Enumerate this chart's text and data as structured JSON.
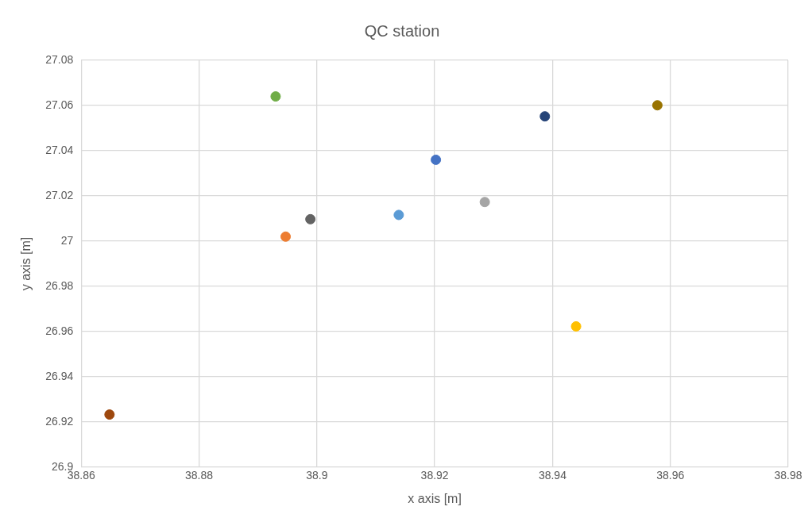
{
  "chart_data": {
    "type": "scatter",
    "title": "QC station",
    "xlabel": "x axis [m]",
    "ylabel": "y axis [m]",
    "x": [
      38.8648,
      38.8947,
      38.8989,
      38.893,
      38.9139,
      38.9202,
      38.9285,
      38.9387,
      38.944,
      38.9578
    ],
    "values": [
      26.9233,
      27.002,
      27.0097,
      27.064,
      27.0116,
      27.036,
      27.0173,
      27.0552,
      26.9623,
      27.0601
    ],
    "colors": [
      "#9e480e",
      "#ed7d31",
      "#636363",
      "#70ad47",
      "#5b9bd5",
      "#4472c4",
      "#a5a5a5",
      "#264478",
      "#ffc000",
      "#997300"
    ],
    "xlim": [
      38.86,
      38.98
    ],
    "xticks": [
      38.86,
      38.88,
      38.9,
      38.92,
      38.94,
      38.96,
      38.98
    ],
    "ylim": [
      26.9,
      27.08
    ],
    "yticks": [
      26.9,
      26.92,
      26.94,
      26.96,
      26.98,
      27,
      27.02,
      27.04,
      27.06,
      27.08
    ],
    "grid": true,
    "legend": false,
    "marker": "circle"
  }
}
